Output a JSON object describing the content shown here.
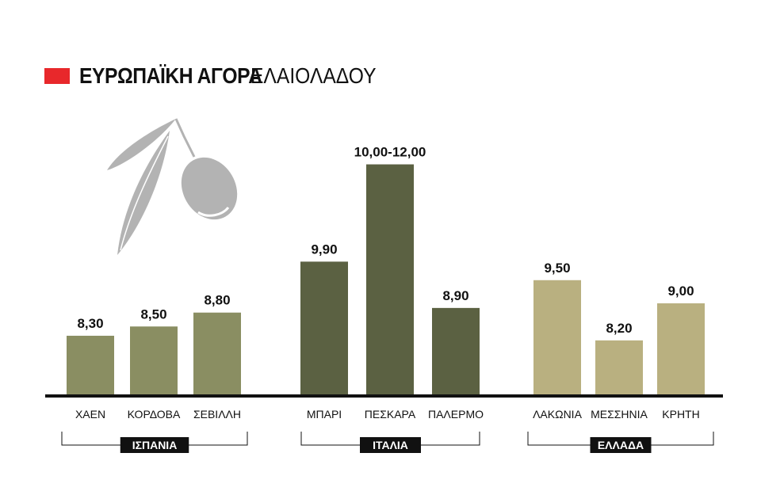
{
  "title": {
    "bold": "ΕΥΡΩΠΑΪΚΗ ΑΓΟΡΑ",
    "light": "ΕΛΑΙΟΛΑΔΟΥ"
  },
  "colors": {
    "title_marker": "#e8282b",
    "axis": "#111111",
    "olive_icon": "#b3b3b3",
    "ΙΣΠΑΝΙΑ": "#8a8e62",
    "ΙΤΑΛΙΑ": "#5b6142",
    "ΕΛΛΑΔΑ": "#b9b080"
  },
  "icon": "olive-branch-icon",
  "chart_data": {
    "type": "bar",
    "ylim": [
      7,
      12.3
    ],
    "grid": false,
    "groups": [
      {
        "name": "ΙΣΠΑΝΙΑ",
        "bars": [
          {
            "category": "ΧΑΕΝ",
            "value": 8.3,
            "label": "8,30"
          },
          {
            "category": "ΚΟΡΔΟΒΑ",
            "value": 8.5,
            "label": "8,50"
          },
          {
            "category": "ΣΕΒΙΛΛΗ",
            "value": 8.8,
            "label": "8,80"
          }
        ]
      },
      {
        "name": "ΙΤΑΛΙΑ",
        "bars": [
          {
            "category": "ΜΠΑΡΙ",
            "value": 9.9,
            "label": "9,90"
          },
          {
            "category": "ΠΕΣΚΑΡΑ",
            "value": 11.0,
            "range": [
              10,
              12
            ],
            "label": "10,00-12,00"
          },
          {
            "category": "ΠΑΛΕΡΜΟ",
            "value": 8.9,
            "label": "8,90"
          }
        ]
      },
      {
        "name": "ΕΛΛΑΔΑ",
        "bars": [
          {
            "category": "ΛΑΚΩΝΙΑ",
            "value": 9.5,
            "label": "9,50"
          },
          {
            "category": "ΜΕΣΣΗΝΙΑ",
            "value": 8.2,
            "label": "8,20"
          },
          {
            "category": "ΚΡΗΤΗ",
            "value": 9.0,
            "label": "9,00"
          }
        ]
      }
    ]
  }
}
